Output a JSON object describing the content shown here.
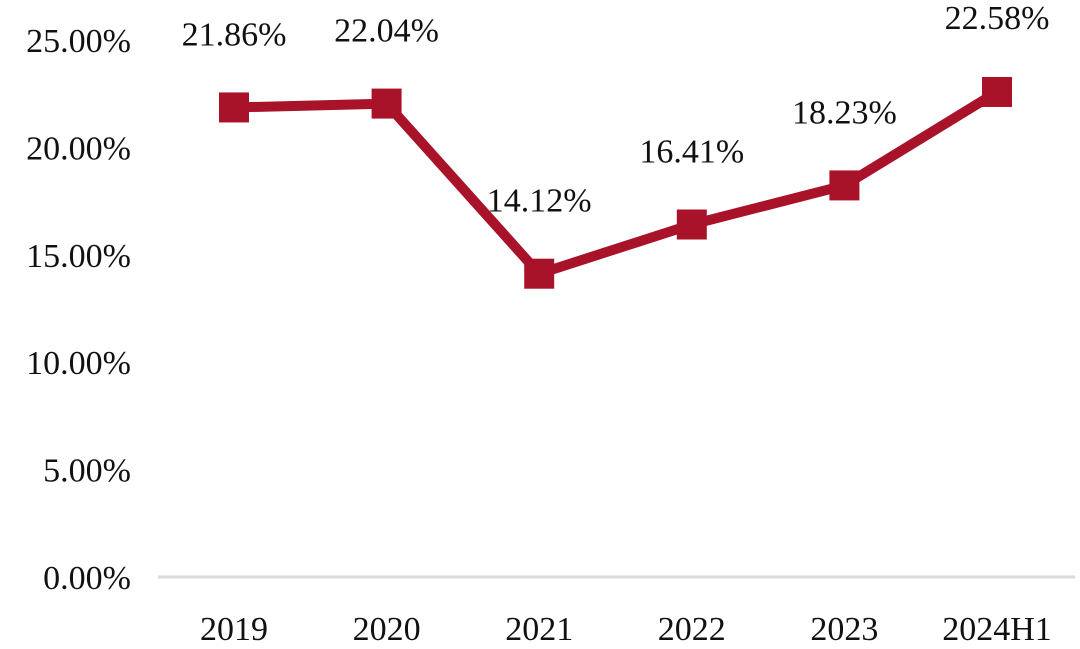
{
  "chart_data": {
    "type": "line",
    "title": "",
    "xlabel": "",
    "ylabel": "",
    "categories": [
      "2019",
      "2020",
      "2021",
      "2022",
      "2023",
      "2024H1"
    ],
    "series": [
      {
        "values": [
          21.86,
          22.04,
          14.12,
          16.41,
          18.23,
          22.58
        ],
        "labels": [
          "21.86%",
          "22.04%",
          "14.12%",
          "16.41%",
          "18.23%",
          "22.58%"
        ],
        "color": "#A8132A"
      }
    ],
    "yticks": [
      "0.00%",
      "5.00%",
      "10.00%",
      "15.00%",
      "20.00%",
      "25.00%"
    ],
    "ylim": [
      0,
      25
    ],
    "grid": false,
    "legend": "none",
    "marker": "square"
  }
}
